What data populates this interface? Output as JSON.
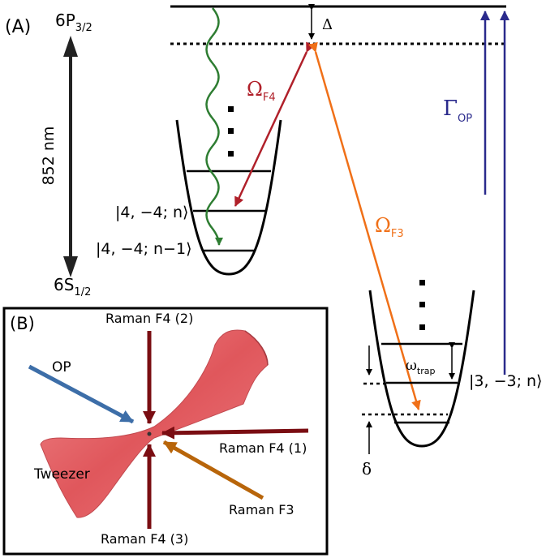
{
  "panel_a": {
    "tag": "(A)",
    "upper_state": {
      "main": "6P",
      "sub": "3/2"
    },
    "lower_state": {
      "main": "6S",
      "sub": "1/2"
    },
    "wavelength": "852 nm",
    "detuning": "Δ",
    "rabi_f4": {
      "main": "Ω",
      "sub": "F4"
    },
    "rabi_f3": {
      "main": "Ω",
      "sub": "F3"
    },
    "gamma_op": {
      "main": "Γ",
      "sub": "OP"
    },
    "ket_n": "|4, −4; n⟩",
    "ket_n_minus_1": "|4, −4; n−1⟩",
    "ket_f3": "|3, −3; n⟩",
    "omega_trap": {
      "main": "ω",
      "sub": "trap"
    },
    "delta_small": "δ"
  },
  "panel_b": {
    "tag": "(B)",
    "raman_f4_2": "Raman F4 (2)",
    "raman_f4_1": "Raman F4 (1)",
    "raman_f4_3": "Raman F4 (3)",
    "raman_f3": "Raman F3",
    "op": "OP",
    "tweezer": "Tweezer"
  },
  "colors": {
    "f4": "#b0202a",
    "f3": "#f07018",
    "op": "#2a2a8c",
    "decay": "#2e7d32",
    "tweezer": "#e26a6e",
    "raman_beam": "#7a0d12",
    "op_beam": "#3d6ea8",
    "raman_f3_beam": "#b8650a"
  }
}
